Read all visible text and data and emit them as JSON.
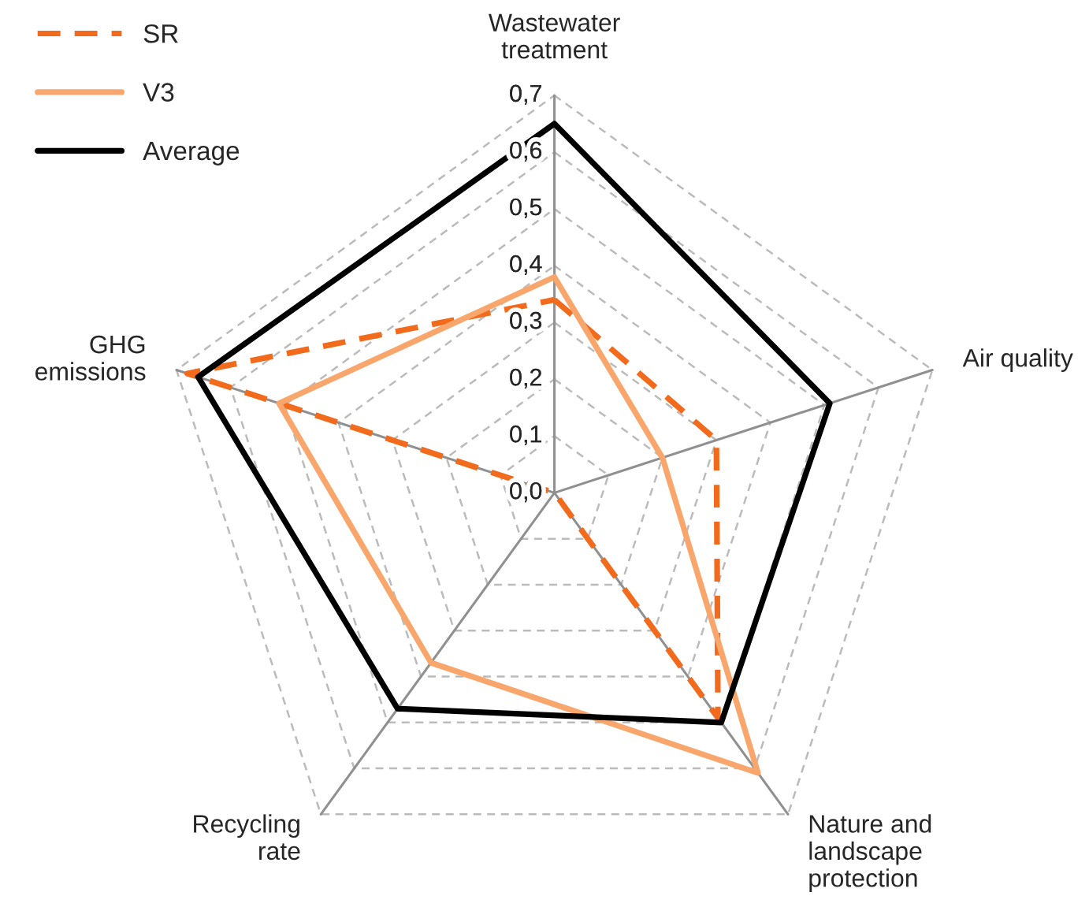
{
  "chart_data": {
    "type": "radar",
    "categories": [
      "Wastewater\ntreatment",
      "Air quality",
      "Nature and\nlandscape\nprotection",
      "Recycling\nrate",
      "GHG\nemissions"
    ],
    "ylim": [
      0,
      0.7
    ],
    "yticks": [
      {
        "value": 0,
        "label": "0,0"
      },
      {
        "value": 0.1,
        "label": "0,1"
      },
      {
        "value": 0.2,
        "label": "0,2"
      },
      {
        "value": 0.3,
        "label": "0,3"
      },
      {
        "value": 0.4,
        "label": "0,4"
      },
      {
        "value": 0.5,
        "label": "0,5"
      },
      {
        "value": 0.6,
        "label": "0,6"
      },
      {
        "value": 0.7,
        "label": "0,7"
      }
    ],
    "grid": true,
    "legend": "top left",
    "series": [
      {
        "name": "SR",
        "color": "#f26a1b",
        "line_style": "dashed",
        "values": [
          0.34,
          0.3,
          0.49,
          0.0,
          0.68
        ]
      },
      {
        "name": "V3",
        "color": "#f9a66c",
        "line_style": "solid",
        "values": [
          0.38,
          0.2,
          0.61,
          0.37,
          0.51
        ]
      },
      {
        "name": "Average",
        "color": "#000000",
        "line_style": "solid",
        "values": [
          0.65,
          0.51,
          0.5,
          0.47,
          0.66
        ]
      }
    ]
  }
}
